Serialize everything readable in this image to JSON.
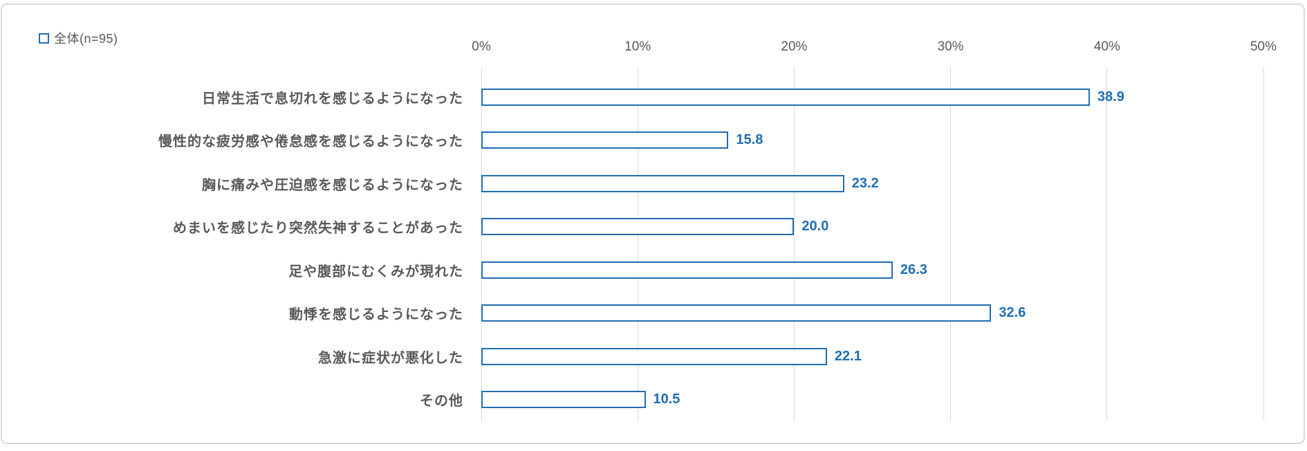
{
  "chart_data": {
    "type": "bar",
    "orientation": "horizontal",
    "title": "",
    "legend": "全体(n=95)",
    "n": 95,
    "categories": [
      "日常生活で息切れを感じるようになった",
      "慢性的な疲労感や倦怠感を感じるようになった",
      "胸に痛みや圧迫感を感じるようになった",
      "めまいを感じたり突然失神することがあった",
      "足や腹部にむくみが現れた",
      "動悸を感じるようになった",
      "急激に症状が悪化した",
      "その他"
    ],
    "values": [
      38.9,
      15.8,
      23.2,
      20.0,
      26.3,
      32.6,
      22.1,
      10.5
    ],
    "value_labels": [
      "38.9",
      "15.8",
      "23.2",
      "20.0",
      "26.3",
      "32.6",
      "22.1",
      "10.5"
    ],
    "x_ticks": [
      "0%",
      "10%",
      "20%",
      "30%",
      "40%",
      "50%"
    ],
    "xlim": [
      0,
      50
    ],
    "grid": true,
    "axis_position": "top",
    "legend_position": "top-left",
    "colors": {
      "bar_fill": "#ffffff",
      "bar_border": "#1e6db4",
      "value_label": "#1e6db4",
      "gridline": "#d9d9d9",
      "tick_label": "#595959",
      "category_label": "#595959"
    }
  }
}
